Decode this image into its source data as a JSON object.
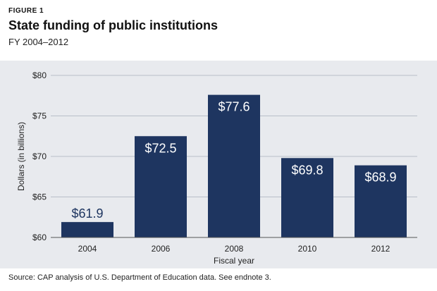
{
  "figure_label": "FIGURE 1",
  "title": "State funding of public institutions",
  "subtitle": "FY 2004–2012",
  "source": "Source: CAP analysis of U.S. Department of Education data. See endnote 3.",
  "colors": {
    "bar": "#1e3560",
    "bar_label": "#ffffff",
    "bar_label_dark": "#1e3560",
    "grid": "#b8bec8",
    "axis_text": "#222222",
    "panel": "#e8eaee"
  },
  "chart_data": {
    "type": "bar",
    "categories": [
      "2004",
      "2006",
      "2008",
      "2010",
      "2012"
    ],
    "values": [
      61.9,
      72.5,
      77.6,
      69.8,
      68.9
    ],
    "value_labels": [
      "$61.9",
      "$72.5",
      "$77.6",
      "$69.8",
      "$68.9"
    ],
    "xlabel": "Fiscal year",
    "ylabel": "Dollars (in billions)",
    "ylim": [
      60,
      80
    ],
    "yticks": [
      60,
      65,
      70,
      75,
      80
    ],
    "ytick_labels": [
      "$60",
      "$65",
      "$70",
      "$75",
      "$80"
    ],
    "grid": true
  }
}
